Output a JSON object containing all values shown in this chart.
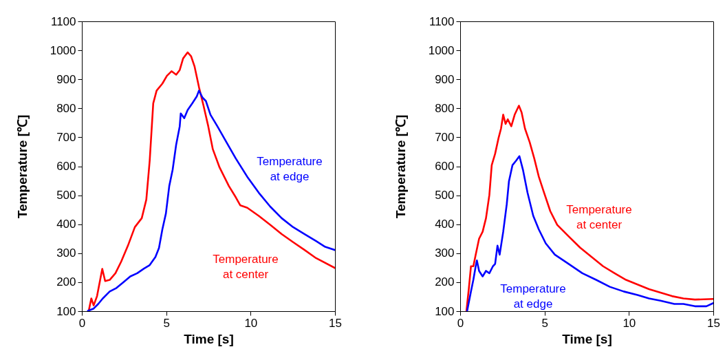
{
  "chart_data": [
    {
      "type": "line",
      "xlabel": "Time [s]",
      "ylabel": "Temperature [℃]",
      "xlim": [
        0,
        15
      ],
      "ylim": [
        100,
        1100
      ],
      "xticks": [
        0,
        5,
        10,
        15
      ],
      "yticks": [
        100,
        200,
        300,
        400,
        500,
        600,
        700,
        800,
        900,
        1000,
        1100
      ],
      "grid": false,
      "line_style": "solid",
      "marker": "none",
      "series": [
        {
          "name": "Temperature\nat center",
          "color": "#ff0000",
          "x": [
            0.42,
            0.56,
            0.7,
            0.9,
            1.21,
            1.38,
            1.65,
            1.99,
            2.33,
            2.73,
            3.14,
            3.55,
            3.82,
            4.02,
            4.23,
            4.43,
            4.77,
            5.04,
            5.32,
            5.59,
            5.8,
            6.0,
            6.27,
            6.47,
            6.68,
            6.94,
            7.21,
            7.49,
            7.76,
            8.16,
            8.71,
            9.12,
            9.39,
            9.8,
            10.48,
            11.16,
            11.84,
            12.52,
            13.2,
            13.88,
            15
          ],
          "values": [
            105,
            144,
            120,
            152,
            246,
            204,
            208,
            231,
            271,
            326,
            390,
            421,
            485,
            619,
            817,
            861,
            885,
            912,
            928,
            916,
            932,
            972,
            993,
            980,
            944,
            873,
            809,
            738,
            659,
            596,
            532,
            493,
            465,
            457,
            429,
            398,
            366,
            338,
            311,
            283,
            249
          ]
        },
        {
          "name": "Temperature\nat edge",
          "color": "#0000ff",
          "x": [
            0.36,
            0.7,
            0.97,
            1.24,
            1.65,
            2.05,
            2.46,
            2.87,
            3.28,
            3.68,
            4.02,
            4.36,
            4.57,
            4.77,
            4.98,
            5.18,
            5.38,
            5.59,
            5.8,
            5.86,
            6.07,
            6.27,
            6.54,
            6.81,
            6.94,
            7.15,
            7.35,
            7.62,
            8.03,
            8.57,
            9.12,
            9.8,
            10.48,
            11.16,
            11.84,
            12.52,
            13.2,
            13.88,
            14.42,
            15
          ],
          "values": [
            101,
            109,
            125,
            144,
            168,
            180,
            200,
            220,
            231,
            247,
            259,
            287,
            318,
            382,
            437,
            532,
            588,
            675,
            738,
            782,
            766,
            794,
            817,
            841,
            861,
            837,
            825,
            778,
            738,
            683,
            627,
            564,
            509,
            461,
            421,
            390,
            366,
            342,
            322,
            311
          ]
        }
      ]
    },
    {
      "type": "line",
      "xlabel": "Time [s]",
      "ylabel": "Temperature [℃]",
      "xlim": [
        0,
        15
      ],
      "ylim": [
        100,
        1100
      ],
      "xticks": [
        0,
        5,
        10,
        15
      ],
      "yticks": [
        100,
        200,
        300,
        400,
        500,
        600,
        700,
        800,
        900,
        1000,
        1100
      ],
      "grid": false,
      "line_style": "solid",
      "marker": "none",
      "series": [
        {
          "name": "Temperature\nat center",
          "color": "#ff0000",
          "x": [
            0.37,
            0.51,
            0.64,
            0.78,
            0.92,
            1.12,
            1.33,
            1.53,
            1.73,
            1.87,
            2.07,
            2.28,
            2.42,
            2.55,
            2.69,
            2.82,
            3.03,
            3.23,
            3.48,
            3.64,
            3.84,
            4.12,
            4.39,
            4.66,
            4.93,
            5.34,
            5.75,
            6.43,
            7.11,
            7.79,
            8.47,
            9.15,
            9.83,
            10.51,
            11.19,
            11.87,
            12.55,
            13.23,
            13.91,
            15
          ],
          "values": [
            100,
            176,
            255,
            255,
            295,
            350,
            374,
            421,
            501,
            604,
            643,
            699,
            730,
            778,
            746,
            762,
            738,
            778,
            809,
            786,
            730,
            683,
            627,
            564,
            516,
            445,
            398,
            358,
            319,
            287,
            255,
            231,
            208,
            192,
            176,
            164,
            152,
            144,
            140,
            142
          ]
        },
        {
          "name": "Temperature\nat edge",
          "color": "#0000ff",
          "x": [
            0.41,
            0.64,
            0.78,
            0.92,
            0.99,
            1.12,
            1.33,
            1.53,
            1.73,
            1.94,
            2.07,
            2.21,
            2.34,
            2.55,
            2.76,
            2.89,
            3.1,
            3.31,
            3.51,
            3.72,
            3.99,
            4.33,
            4.66,
            5.07,
            5.61,
            6.43,
            7.24,
            8.06,
            8.87,
            9.69,
            10.51,
            11.19,
            11.87,
            12.69,
            13.23,
            13.91,
            14.59,
            15
          ],
          "values": [
            100,
            168,
            208,
            255,
            275,
            239,
            220,
            239,
            231,
            255,
            263,
            326,
            295,
            374,
            469,
            548,
            604,
            619,
            635,
            588,
            509,
            429,
            382,
            334,
            295,
            263,
            231,
            208,
            184,
            168,
            156,
            144,
            136,
            125,
            125,
            117,
            117,
            128
          ]
        }
      ]
    }
  ]
}
